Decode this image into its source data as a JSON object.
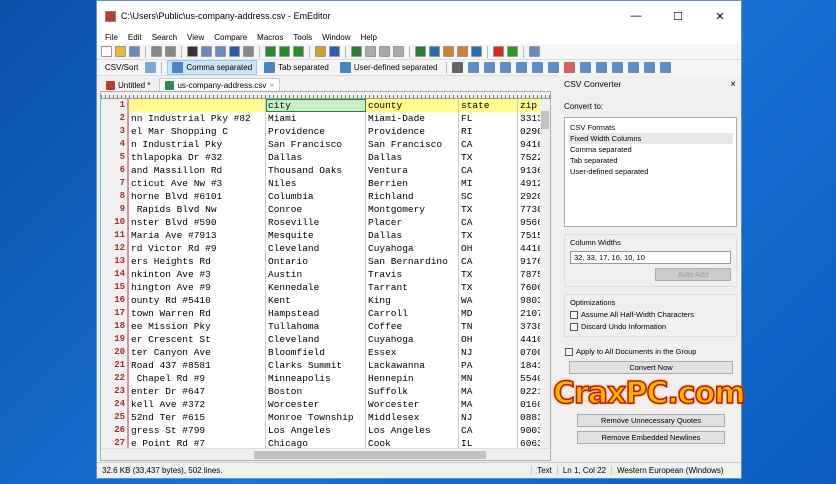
{
  "window": {
    "title": "C:\\Users\\Public\\us-company-address.csv - EmEditor",
    "minimize": "—",
    "maximize": "☐",
    "close": "✕"
  },
  "menu": [
    "File",
    "Edit",
    "Search",
    "View",
    "Compare",
    "Macros",
    "Tools",
    "Window",
    "Help"
  ],
  "csv_toolbar": {
    "label": "CSV/Sort",
    "modes": [
      "Comma separated",
      "Tab separated",
      "User-defined separated"
    ],
    "active": "Comma separated"
  },
  "tabs": [
    {
      "label": "Untitled *"
    },
    {
      "label": "us-company-address.csv",
      "close": "×",
      "active": true
    }
  ],
  "columns": [
    "",
    "city",
    "county",
    "state",
    "zip"
  ],
  "rows": [
    [
      "nn Industrial Pky #82",
      "Miami",
      "Miami-Dade",
      "FL",
      "3313"
    ],
    [
      "el Mar Shopping C",
      "Providence",
      "Providence",
      "RI",
      "0290"
    ],
    [
      "n Industrial Pky",
      "San Francisco",
      "San Francisco",
      "CA",
      "9410"
    ],
    [
      "thlapopka Dr #32",
      "Dallas",
      "Dallas",
      "TX",
      "7522"
    ],
    [
      "and Massillon Rd",
      "Thousand Oaks",
      "Ventura",
      "CA",
      "9136"
    ],
    [
      "cticut Ave Nw #3",
      "Niles",
      "Berrien",
      "MI",
      "4912"
    ],
    [
      "horne Blvd #6101",
      "Columbia",
      "Richland",
      "SC",
      "2920"
    ],
    [
      " Rapids Blvd Nw",
      "Conroe",
      "Montgomery",
      "TX",
      "7730"
    ],
    [
      "nster Blvd #590",
      "Roseville",
      "Placer",
      "CA",
      "9566"
    ],
    [
      "Maria Ave #7913",
      "Mesquite",
      "Dallas",
      "TX",
      "7515"
    ],
    [
      "rd Victor Rd #9",
      "Cleveland",
      "Cuyahoga",
      "OH",
      "4410"
    ],
    [
      "ers Heights Rd",
      "Ontario",
      "San Bernardino",
      "CA",
      "9176"
    ],
    [
      "nkinton Ave #3",
      "Austin",
      "Travis",
      "TX",
      "7875"
    ],
    [
      "hington Ave #9",
      "Kennedale",
      "Tarrant",
      "TX",
      "7606"
    ],
    [
      "ounty Rd #5410",
      "Kent",
      "King",
      "WA",
      "9803"
    ],
    [
      "town Warren Rd",
      "Hampstead",
      "Carroll",
      "MD",
      "2107"
    ],
    [
      "ee Mission Pky",
      "Tullahoma",
      "Coffee",
      "TN",
      "3738"
    ],
    [
      "er Crescent St",
      "Cleveland",
      "Cuyahoga",
      "OH",
      "4410"
    ],
    [
      "ter Canyon Ave",
      "Bloomfield",
      "Essex",
      "NJ",
      "0700"
    ],
    [
      "Road 437 #8581",
      "Clarks Summit",
      "Lackawanna",
      "PA",
      "1841"
    ],
    [
      " Chapel Rd #9",
      "Minneapolis",
      "Hennepin",
      "MN",
      "5540"
    ],
    [
      "enter Dr #647",
      "Boston",
      "Suffolk",
      "MA",
      "0221"
    ],
    [
      "kell Ave #372",
      "Worcester",
      "Worcester",
      "MA",
      "0160"
    ],
    [
      "52nd Ter #615",
      "Monroe Township",
      "Middlesex",
      "NJ",
      "0883"
    ],
    [
      "gress St #799",
      "Los Angeles",
      "Los Angeles",
      "CA",
      "9003"
    ],
    [
      "e Point Rd #7",
      "Chicago",
      "Cook",
      "IL",
      "6063"
    ]
  ],
  "status": {
    "size": "32.6 KB (33,437 bytes), 502 lines.",
    "mode": "Text",
    "position": "Ln 1, Col 22",
    "encoding": "Western European (Windows)"
  },
  "panel": {
    "title": "CSV Converter",
    "close": "×",
    "convert_to": "Convert to:",
    "formats_header": "CSV Formats",
    "formats": [
      "Fixed Width Columns",
      "Comma separated",
      "Tab separated",
      "User-defined separated"
    ],
    "selected": "Fixed Width Columns",
    "column_widths_label": "Column Widths",
    "column_widths": "32, 33, 17, 16, 10, 10",
    "auto_add": "Auto Add",
    "optimizations_label": "Optimizations",
    "opt1": "Assume All Half-Width Characters",
    "opt2": "Discard Undo Information",
    "apply_all": "Apply to All Documents in the Group",
    "convert_now": "Convert Now",
    "remove_quotes": "Remove Unnecessary Quotes",
    "remove_newlines": "Remove Embedded Newlines"
  },
  "watermark": "CraxPC.com"
}
